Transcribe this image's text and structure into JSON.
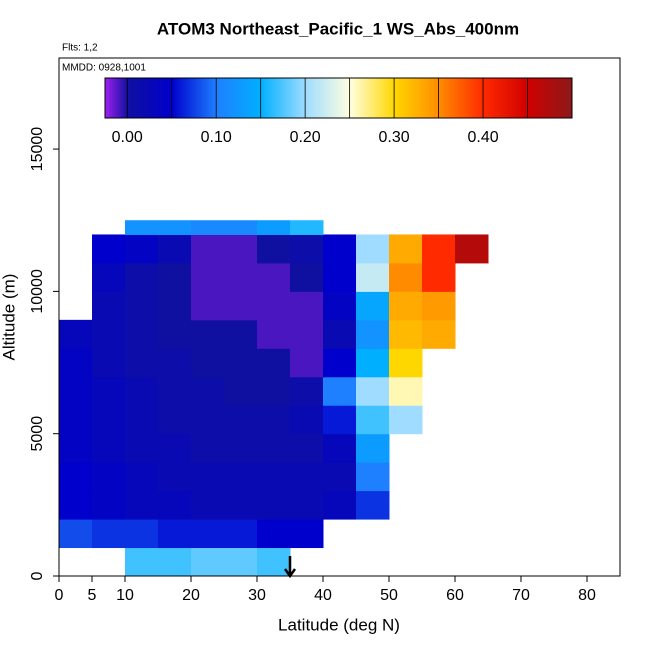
{
  "chart_data": {
    "type": "curtain",
    "title": "ATOM3 Northeast_Pacific_1 WS_Abs_400nm",
    "annotations": [
      "Flts: 1,2",
      "MMDD: 0928,1001"
    ],
    "xlabel": "Latitude (deg N)",
    "ylabel": "Altitude (m)",
    "xlim": [
      0,
      85
    ],
    "xticks": [
      0,
      5,
      10,
      20,
      30,
      40,
      50,
      60,
      70,
      80
    ],
    "ylim": [
      0,
      18200
    ],
    "yticks": [
      0,
      5000,
      10000,
      15000
    ],
    "lat_edges": [
      0,
      5,
      10,
      15,
      20,
      25,
      30,
      35,
      40,
      45,
      50,
      55,
      60,
      65
    ],
    "alt_edges": [
      0,
      1000,
      2000,
      3000,
      4000,
      5000,
      6000,
      7000,
      8000,
      9000,
      10000,
      11000,
      12000,
      12500
    ],
    "values": [
      [
        null,
        null,
        0.17,
        0.17,
        0.18,
        0.18,
        0.17,
        null,
        null,
        null,
        null,
        null,
        null
      ],
      [
        0.08,
        0.07,
        0.07,
        0.06,
        0.06,
        0.06,
        0.05,
        0.05,
        null,
        null,
        null,
        null,
        null
      ],
      [
        0.05,
        0.04,
        0.03,
        0.03,
        0.02,
        0.02,
        0.02,
        0.02,
        0.03,
        0.07,
        null,
        null,
        null
      ],
      [
        0.05,
        0.04,
        0.03,
        0.02,
        0.02,
        0.02,
        0.02,
        0.02,
        0.02,
        0.1,
        null,
        null,
        null
      ],
      [
        0.04,
        0.03,
        0.02,
        0.02,
        0.01,
        0.01,
        0.01,
        0.01,
        0.03,
        0.13,
        null,
        null,
        null
      ],
      [
        0.04,
        0.03,
        0.02,
        0.01,
        0.01,
        0.01,
        0.01,
        0.02,
        0.06,
        0.17,
        0.2,
        null,
        null
      ],
      [
        0.04,
        0.03,
        0.02,
        0.01,
        0.01,
        0.0,
        0.0,
        0.01,
        0.1,
        0.2,
        0.26,
        null,
        null
      ],
      [
        0.04,
        0.02,
        0.01,
        0.01,
        0.0,
        0.0,
        0.0,
        -0.01,
        0.05,
        0.15,
        0.3,
        null,
        null
      ],
      [
        0.03,
        0.02,
        0.01,
        0.0,
        0.0,
        0.0,
        -0.01,
        -0.01,
        0.02,
        0.12,
        0.32,
        0.33,
        null
      ],
      [
        null,
        0.02,
        0.01,
        0.0,
        -0.01,
        -0.01,
        -0.01,
        -0.01,
        0.04,
        0.14,
        0.33,
        0.34,
        null
      ],
      [
        null,
        0.03,
        0.01,
        0.0,
        -0.01,
        -0.01,
        -0.01,
        0.0,
        0.05,
        0.22,
        0.35,
        0.4,
        null
      ],
      [
        null,
        0.05,
        0.04,
        0.02,
        -0.01,
        -0.01,
        0.0,
        0.01,
        0.05,
        0.2,
        0.33,
        0.4,
        0.47
      ],
      [
        null,
        null,
        0.12,
        0.12,
        0.11,
        0.11,
        0.13,
        0.16,
        null,
        null,
        null,
        null,
        null
      ]
    ],
    "colorscale": [
      [
        -0.025,
        "#a020f0"
      ],
      [
        0,
        "#1010a0"
      ],
      [
        0.05,
        "#0000cd"
      ],
      [
        0.1,
        "#1e7fff"
      ],
      [
        0.15,
        "#00b0ff"
      ],
      [
        0.2,
        "#a0dcff"
      ],
      [
        0.25,
        "#ffffe0"
      ],
      [
        0.3,
        "#ffd700"
      ],
      [
        0.35,
        "#ff8c00"
      ],
      [
        0.4,
        "#ff2a00"
      ],
      [
        0.45,
        "#d00000"
      ],
      [
        0.5,
        "#8b1a1a"
      ]
    ],
    "clim": [
      -0.025,
      0.5
    ],
    "cticks": [
      {
        "value": 0,
        "label": "0.00"
      },
      {
        "value": 0.1,
        "label": "0.10"
      },
      {
        "value": 0.2,
        "label": "0.20"
      },
      {
        "value": 0.3,
        "label": "0.30"
      },
      {
        "value": 0.4,
        "label": "0.40"
      }
    ],
    "marker_lat": 35
  }
}
